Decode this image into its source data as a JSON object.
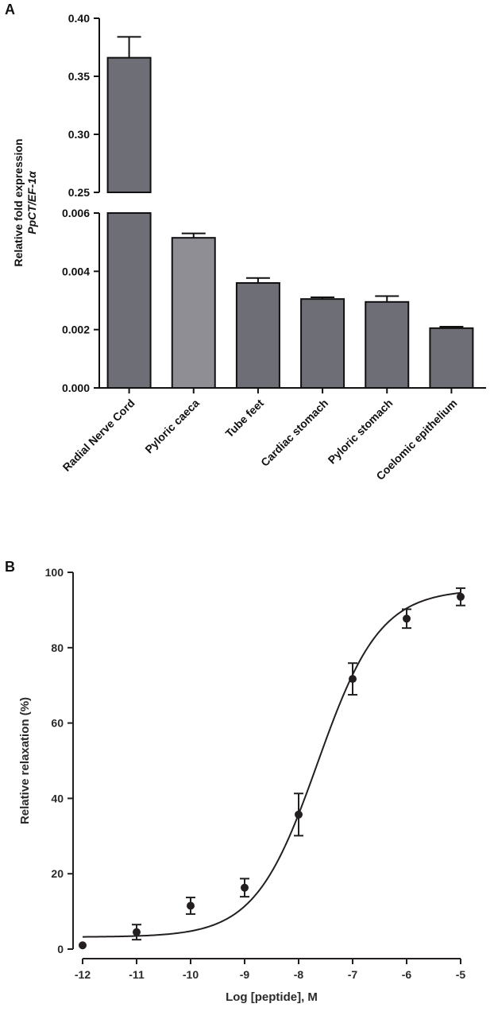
{
  "panels": {
    "a_label": "A",
    "b_label": "B"
  },
  "chart_data": [
    {
      "type": "bar",
      "panel": "A",
      "categories": [
        "Radial Nerve Cord",
        "Pyloric caeca",
        "Tube feet",
        "Cardiac stomach",
        "Pyloric stomach",
        "Coelomic epithelium"
      ],
      "values": [
        0.366,
        0.00515,
        0.0036,
        0.00305,
        0.00295,
        0.00205
      ],
      "errors": [
        0.018,
        0.00015,
        0.00017,
        6e-05,
        0.0002,
        5e-05
      ],
      "ylabel_line1": "Relative fold expression",
      "ylabel_line2": "PpCT/EF-1α",
      "axis_break": true,
      "lower_segment": {
        "ylim": [
          0,
          0.006
        ],
        "ticks": [
          "0.000",
          "0.002",
          "0.004",
          "0.006"
        ]
      },
      "upper_segment": {
        "ylim": [
          0.25,
          0.4
        ],
        "ticks": [
          "0.25",
          "0.30",
          "0.35",
          "0.40"
        ]
      },
      "colors": {
        "bar_dark": "#6e6e76",
        "bar_light": "#8e8e94",
        "light_index": 1
      }
    },
    {
      "type": "scatter",
      "panel": "B",
      "x": [
        -12,
        -11,
        -10,
        -9,
        -8,
        -7,
        -6,
        -5
      ],
      "y": [
        1,
        4.5,
        11.5,
        16.3,
        35.7,
        71.7,
        87.7,
        93.5
      ],
      "errors": [
        0,
        2,
        2.2,
        2.4,
        5.6,
        4.2,
        2.5,
        2.3
      ],
      "fit": {
        "model": "sigmoidal dose-response",
        "bottom": 3.2,
        "top": 95.5,
        "log_ec50": -7.65,
        "hill_slope": 0.75
      },
      "xlabel": "Log [peptide], M",
      "ylabel": "Relative relaxation (%)",
      "xlim": [
        -12,
        -5
      ],
      "ylim": [
        0,
        100
      ],
      "xticks": [
        "-12",
        "-11",
        "-10",
        "-9",
        "-8",
        "-7",
        "-6",
        "-5"
      ],
      "yticks": [
        "0",
        "20",
        "40",
        "60",
        "80",
        "100"
      ],
      "colors": {
        "marker": "#231f20"
      }
    }
  ]
}
